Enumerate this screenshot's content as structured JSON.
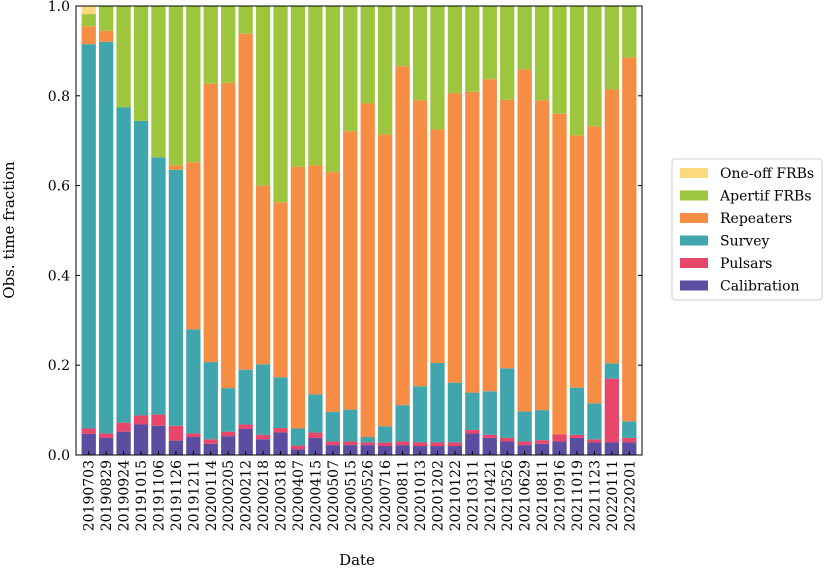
{
  "chart_data": {
    "type": "bar",
    "stacked": true,
    "xlabel": "Date",
    "ylabel": "Obs. time fraction",
    "ylim": [
      0,
      1
    ],
    "yticks": [
      "0.0",
      "0.2",
      "0.4",
      "0.6",
      "0.8",
      "1.0"
    ],
    "legend_position": "right",
    "categories": [
      "20190703",
      "20190829",
      "20190924",
      "20191015",
      "20191106",
      "20191126",
      "20191211",
      "20200114",
      "20200205",
      "20200212",
      "20200218",
      "20200318",
      "20200407",
      "20200415",
      "20200507",
      "20200515",
      "20200526",
      "20200716",
      "20200811",
      "20201013",
      "20201202",
      "20210122",
      "20210311",
      "20210421",
      "20210526",
      "20210629",
      "20210811",
      "20210916",
      "20211019",
      "20211123",
      "20220111",
      "20220201"
    ],
    "series": [
      {
        "name": "Calibration",
        "color": "#5b4ea0",
        "values": [
          0.047,
          0.038,
          0.052,
          0.068,
          0.065,
          0.032,
          0.04,
          0.025,
          0.042,
          0.058,
          0.035,
          0.05,
          0.013,
          0.038,
          0.022,
          0.022,
          0.022,
          0.02,
          0.022,
          0.02,
          0.02,
          0.02,
          0.048,
          0.038,
          0.03,
          0.022,
          0.025,
          0.03,
          0.038,
          0.028,
          0.028,
          0.028
        ]
      },
      {
        "name": "Pulsars",
        "color": "#e8476b",
        "values": [
          0.012,
          0.01,
          0.02,
          0.02,
          0.025,
          0.033,
          0.008,
          0.01,
          0.01,
          0.01,
          0.01,
          0.01,
          0.008,
          0.012,
          0.008,
          0.008,
          0.006,
          0.008,
          0.008,
          0.008,
          0.008,
          0.008,
          0.008,
          0.007,
          0.008,
          0.008,
          0.008,
          0.016,
          0.007,
          0.007,
          0.142,
          0.01
        ]
      },
      {
        "name": "Survey",
        "color": "#41a5ad",
        "values": [
          0.856,
          0.872,
          0.702,
          0.656,
          0.573,
          0.57,
          0.232,
          0.172,
          0.097,
          0.122,
          0.157,
          0.113,
          0.038,
          0.085,
          0.066,
          0.071,
          0.012,
          0.036,
          0.081,
          0.125,
          0.177,
          0.133,
          0.083,
          0.097,
          0.155,
          0.067,
          0.067,
          0.0,
          0.105,
          0.08,
          0.034,
          0.037
        ]
      },
      {
        "name": "Repeaters",
        "color": "#f68d44",
        "values": [
          0.04,
          0.025,
          0.0,
          0.0,
          0.0,
          0.01,
          0.372,
          0.62,
          0.68,
          0.748,
          0.398,
          0.39,
          0.583,
          0.51,
          0.534,
          0.62,
          0.743,
          0.65,
          0.755,
          0.637,
          0.52,
          0.645,
          0.67,
          0.695,
          0.598,
          0.762,
          0.69,
          0.714,
          0.562,
          0.617,
          0.61,
          0.81
        ]
      },
      {
        "name": "Apertif FRBs",
        "color": "#9dc63e",
        "values": [
          0.027,
          0.055,
          0.226,
          0.256,
          0.337,
          0.355,
          0.348,
          0.173,
          0.171,
          0.062,
          0.4,
          0.437,
          0.358,
          0.355,
          0.37,
          0.279,
          0.217,
          0.286,
          0.134,
          0.21,
          0.275,
          0.194,
          0.191,
          0.163,
          0.209,
          0.141,
          0.21,
          0.24,
          0.288,
          0.268,
          0.186,
          0.115
        ]
      },
      {
        "name": "One-off FRBs",
        "color": "#fcd97a",
        "values": [
          0.018,
          0.0,
          0.0,
          0.0,
          0.0,
          0.0,
          0.0,
          0.0,
          0.0,
          0.0,
          0.0,
          0.0,
          0.0,
          0.0,
          0.0,
          0.0,
          0.0,
          0.0,
          0.0,
          0.0,
          0.0,
          0.0,
          0.0,
          0.0,
          0.0,
          0.0,
          0.0,
          0.0,
          0.0,
          0.0,
          0.0,
          0.0
        ]
      }
    ],
    "legend_order": [
      "One-off FRBs",
      "Apertif FRBs",
      "Repeaters",
      "Survey",
      "Pulsars",
      "Calibration"
    ]
  }
}
